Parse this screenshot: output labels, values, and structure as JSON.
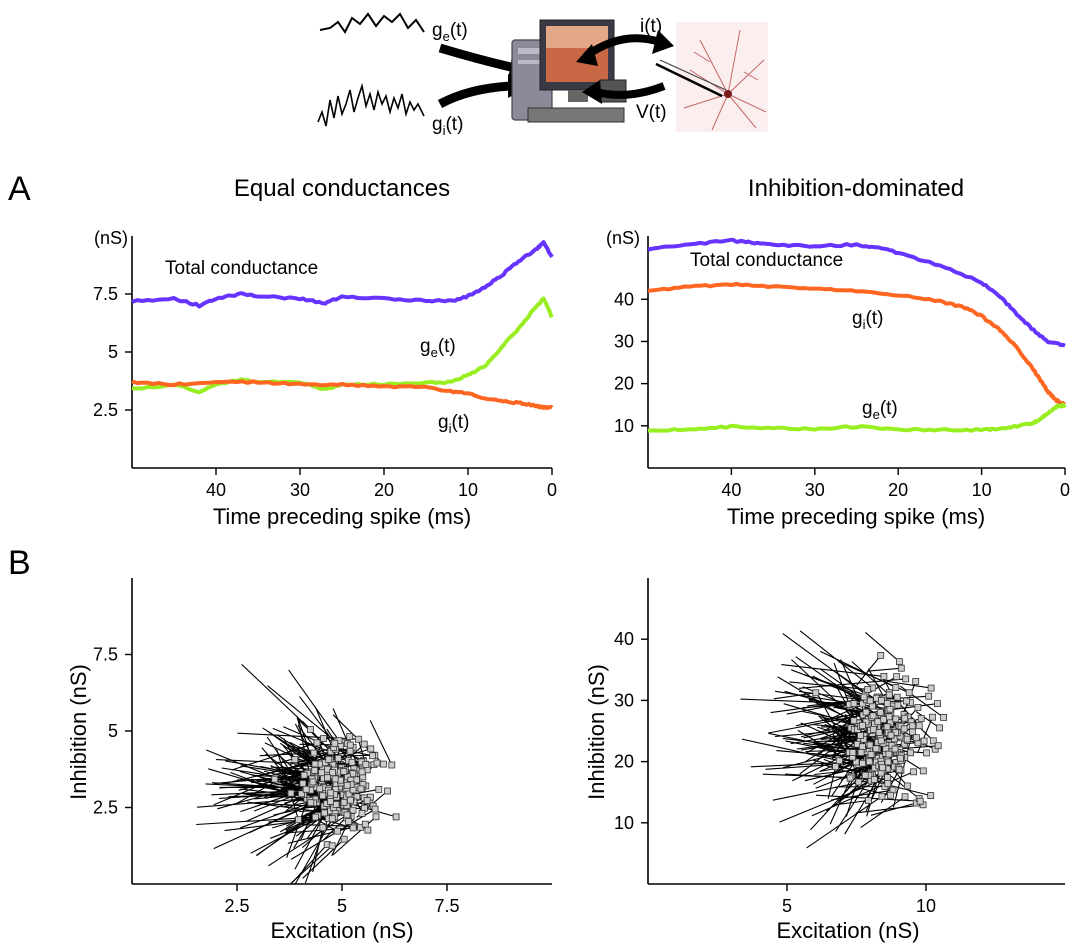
{
  "schematic": {
    "ge_label": "g",
    "ge_sub": "e",
    "gi_label": "g",
    "gi_sub": "i",
    "t_suffix": "(t)",
    "i_label": "i(t)",
    "v_label": "V(t)"
  },
  "panels": {
    "A_letter": "A",
    "B_letter": "B"
  },
  "chart_data": [
    {
      "id": "A-left",
      "type": "line",
      "title": "Equal conductances",
      "unit_label": "(nS)",
      "xlabel": "Time preceding spike (ms)",
      "ylabel": "",
      "xlim": [
        50,
        0
      ],
      "ylim": [
        0,
        10
      ],
      "xticks": [
        40,
        30,
        20,
        10,
        0
      ],
      "yticks": [
        2.5,
        5,
        7.5
      ],
      "yticklabels": [
        "2.5",
        "5",
        "7.5"
      ],
      "grid": false,
      "series": [
        {
          "name": "Total conductance",
          "color": "#6633ff",
          "x": [
            50,
            45,
            42,
            40,
            37,
            35,
            30,
            27,
            25,
            20,
            15,
            12,
            10,
            8,
            6,
            4,
            2,
            1,
            0
          ],
          "y": [
            7.2,
            7.3,
            7.0,
            7.3,
            7.5,
            7.4,
            7.3,
            7.1,
            7.4,
            7.3,
            7.2,
            7.2,
            7.4,
            7.8,
            8.3,
            8.9,
            9.4,
            9.7,
            9.1
          ]
        },
        {
          "name": "g",
          "name_sub": "e",
          "name_suffix": "(t)",
          "color": "#99ee22",
          "x": [
            50,
            45,
            42,
            40,
            37,
            35,
            30,
            27,
            25,
            20,
            15,
            12,
            10,
            8,
            6,
            4,
            2,
            1,
            0
          ],
          "y": [
            3.4,
            3.6,
            3.3,
            3.6,
            3.8,
            3.7,
            3.7,
            3.4,
            3.6,
            3.6,
            3.7,
            3.7,
            4.0,
            4.4,
            5.2,
            6.0,
            6.9,
            7.3,
            6.5
          ]
        },
        {
          "name": "g",
          "name_sub": "i",
          "name_suffix": "(t)",
          "color": "#ff6622",
          "x": [
            50,
            45,
            40,
            35,
            30,
            25,
            20,
            15,
            12,
            10,
            8,
            6,
            4,
            2,
            1,
            0
          ],
          "y": [
            3.7,
            3.6,
            3.7,
            3.7,
            3.6,
            3.6,
            3.5,
            3.5,
            3.3,
            3.2,
            3.0,
            2.9,
            2.8,
            2.7,
            2.6,
            2.6
          ]
        }
      ]
    },
    {
      "id": "A-right",
      "type": "line",
      "title": "Inhibition-dominated",
      "unit_label": "(nS)",
      "xlabel": "Time preceding spike (ms)",
      "ylabel": "",
      "xlim": [
        50,
        0
      ],
      "ylim": [
        0,
        55
      ],
      "xticks": [
        40,
        30,
        20,
        10,
        0
      ],
      "yticks": [
        10,
        20,
        30,
        40
      ],
      "yticklabels": [
        "10",
        "20",
        "30",
        "40"
      ],
      "grid": false,
      "series": [
        {
          "name": "Total conductance",
          "color": "#6633ff",
          "x": [
            50,
            45,
            40,
            38,
            35,
            30,
            25,
            22,
            20,
            15,
            10,
            8,
            6,
            4,
            2,
            0
          ],
          "y": [
            52,
            53,
            54,
            53.5,
            53,
            52.5,
            53,
            52,
            51,
            48,
            44,
            41,
            37,
            33,
            30,
            29
          ]
        },
        {
          "name": "g",
          "name_sub": "i",
          "name_suffix": "(t)",
          "color": "#ff6622",
          "x": [
            50,
            45,
            40,
            35,
            30,
            25,
            20,
            15,
            12,
            10,
            8,
            6,
            4,
            3,
            2,
            1,
            0
          ],
          "y": [
            42,
            43,
            43.5,
            43,
            42.5,
            42,
            41,
            39.5,
            38,
            36,
            33,
            29,
            24,
            21,
            18,
            16,
            15
          ]
        },
        {
          "name": "g",
          "name_sub": "e",
          "name_suffix": "(t)",
          "color": "#99ee22",
          "x": [
            50,
            45,
            40,
            35,
            30,
            25,
            20,
            15,
            10,
            8,
            6,
            4,
            3,
            2,
            1,
            0
          ],
          "y": [
            9,
            9.2,
            9.8,
            9.5,
            9.3,
            9.8,
            9.2,
            9.0,
            9.0,
            9.3,
            9.8,
            10.5,
            11.5,
            13,
            14.5,
            15
          ]
        }
      ]
    },
    {
      "id": "B-left",
      "type": "scatter",
      "xlabel": "Excitation (nS)",
      "ylabel": "Inhibition (nS)",
      "xlim": [
        0,
        10
      ],
      "ylim": [
        0,
        10
      ],
      "xticks": [
        2.5,
        5,
        7.5
      ],
      "xticklabels": [
        "2.5",
        "5",
        "7.5"
      ],
      "yticks": [
        2.5,
        5,
        7.5
      ],
      "yticklabels": [
        "2.5",
        "5",
        "7.5"
      ],
      "cloud_center": [
        4.9,
        3.3
      ],
      "cloud_spread": [
        0.5,
        0.7
      ],
      "grid": false
    },
    {
      "id": "B-right",
      "type": "scatter",
      "xlabel": "Excitation (nS)",
      "ylabel": "Inhibition (nS)",
      "xlim": [
        0,
        15
      ],
      "ylim": [
        0,
        50
      ],
      "xticks": [
        5,
        10
      ],
      "xticklabels": [
        "5",
        "10"
      ],
      "yticks": [
        10,
        20,
        30,
        40
      ],
      "yticklabels": [
        "10",
        "20",
        "30",
        "40"
      ],
      "cloud_center": [
        8.5,
        24
      ],
      "cloud_spread": [
        0.8,
        4.5
      ],
      "grid": false
    }
  ]
}
